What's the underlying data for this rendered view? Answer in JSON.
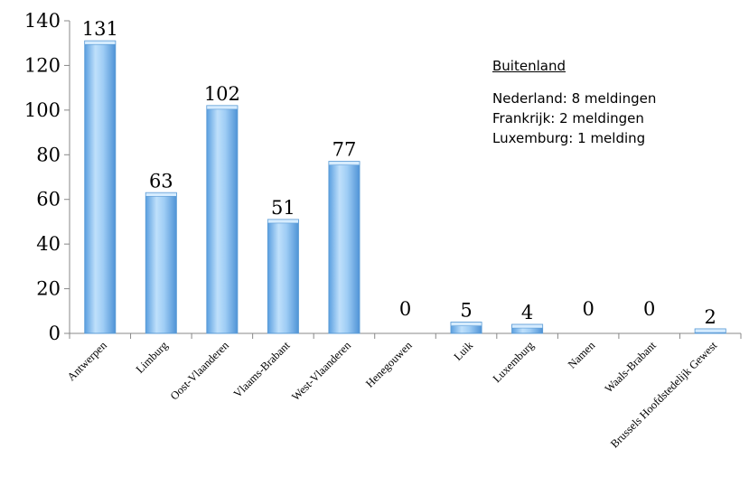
{
  "chart_data": {
    "type": "bar",
    "categories": [
      "Antwerpen",
      "Limburg",
      "Oost-Vlaanderen",
      "Vlaams-Brabant",
      "West-Vlaanderen",
      "Henegouwen",
      "Luik",
      "Luxemburg",
      "Namen",
      "Waals-Brabant",
      "Brussels Hoofdstedelijk Gewest"
    ],
    "values": [
      131,
      63,
      102,
      51,
      77,
      0,
      5,
      4,
      0,
      0,
      2
    ],
    "ylim": [
      0,
      140
    ],
    "yticks": [
      "0",
      "20",
      "40",
      "60",
      "80",
      "100",
      "120",
      "140"
    ],
    "grid": false,
    "bar_color": "#8cc3f2",
    "bar_edge_color": "#5b9bd5"
  },
  "annotation": {
    "title": "Buitenland",
    "lines": [
      "Nederland: 8 meldingen",
      "Frankrijk: 2 meldingen",
      "Luxemburg: 1 melding"
    ]
  }
}
